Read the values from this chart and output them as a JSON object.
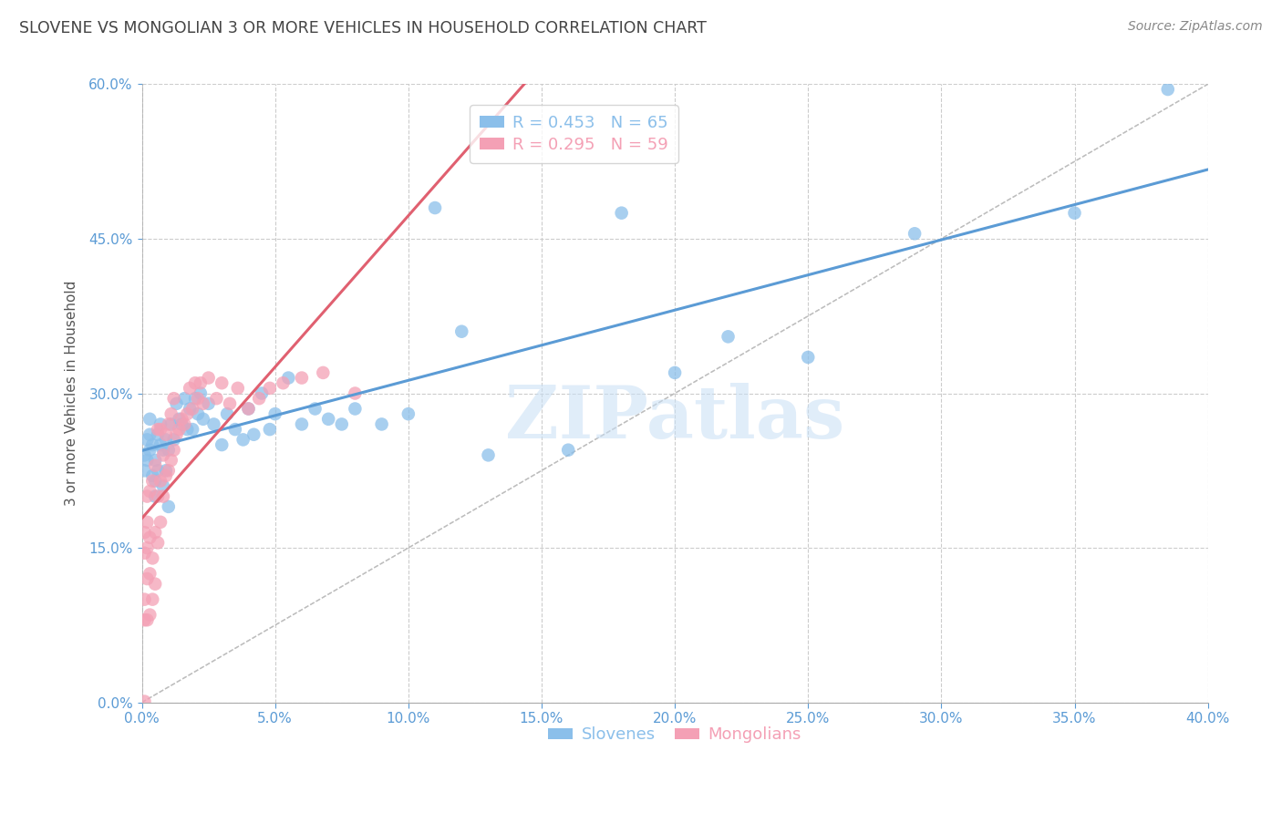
{
  "title": "SLOVENE VS MONGOLIAN 3 OR MORE VEHICLES IN HOUSEHOLD CORRELATION CHART",
  "source": "Source: ZipAtlas.com",
  "ylabel": "3 or more Vehicles in Household",
  "watermark": "ZIPatlas",
  "xmin": 0.0,
  "xmax": 0.4,
  "ymin": 0.0,
  "ymax": 0.6,
  "xticks": [
    0.0,
    0.05,
    0.1,
    0.15,
    0.2,
    0.25,
    0.3,
    0.35,
    0.4
  ],
  "yticks": [
    0.0,
    0.15,
    0.3,
    0.45,
    0.6
  ],
  "legend_entries": [
    {
      "label": "Slovenes",
      "R": 0.453,
      "N": 65,
      "color": "#8bbfea"
    },
    {
      "label": "Mongolians",
      "R": 0.295,
      "N": 59,
      "color": "#f4a0b5"
    }
  ],
  "slovene_x": [
    0.001,
    0.001,
    0.002,
    0.002,
    0.003,
    0.003,
    0.003,
    0.004,
    0.004,
    0.005,
    0.005,
    0.005,
    0.006,
    0.006,
    0.007,
    0.007,
    0.008,
    0.008,
    0.009,
    0.009,
    0.01,
    0.01,
    0.011,
    0.012,
    0.013,
    0.014,
    0.015,
    0.016,
    0.017,
    0.018,
    0.019,
    0.02,
    0.021,
    0.022,
    0.023,
    0.025,
    0.027,
    0.03,
    0.032,
    0.035,
    0.038,
    0.04,
    0.042,
    0.045,
    0.048,
    0.05,
    0.055,
    0.06,
    0.065,
    0.07,
    0.075,
    0.08,
    0.09,
    0.1,
    0.11,
    0.12,
    0.13,
    0.16,
    0.18,
    0.2,
    0.22,
    0.25,
    0.29,
    0.35,
    0.385
  ],
  "slovene_y": [
    0.225,
    0.24,
    0.235,
    0.255,
    0.245,
    0.26,
    0.275,
    0.22,
    0.25,
    0.2,
    0.215,
    0.235,
    0.225,
    0.26,
    0.25,
    0.27,
    0.21,
    0.245,
    0.225,
    0.255,
    0.19,
    0.245,
    0.27,
    0.255,
    0.29,
    0.275,
    0.27,
    0.295,
    0.265,
    0.285,
    0.265,
    0.295,
    0.28,
    0.3,
    0.275,
    0.29,
    0.27,
    0.25,
    0.28,
    0.265,
    0.255,
    0.285,
    0.26,
    0.3,
    0.265,
    0.28,
    0.315,
    0.27,
    0.285,
    0.275,
    0.27,
    0.285,
    0.27,
    0.28,
    0.48,
    0.36,
    0.24,
    0.245,
    0.475,
    0.32,
    0.355,
    0.335,
    0.455,
    0.475,
    0.595
  ],
  "mongolian_x": [
    0.001,
    0.001,
    0.001,
    0.001,
    0.001,
    0.002,
    0.002,
    0.002,
    0.002,
    0.002,
    0.003,
    0.003,
    0.003,
    0.003,
    0.004,
    0.004,
    0.004,
    0.005,
    0.005,
    0.005,
    0.006,
    0.006,
    0.006,
    0.007,
    0.007,
    0.007,
    0.008,
    0.008,
    0.009,
    0.009,
    0.01,
    0.01,
    0.011,
    0.011,
    0.012,
    0.012,
    0.013,
    0.014,
    0.015,
    0.016,
    0.017,
    0.018,
    0.019,
    0.02,
    0.021,
    0.022,
    0.023,
    0.025,
    0.028,
    0.03,
    0.033,
    0.036,
    0.04,
    0.044,
    0.048,
    0.053,
    0.06,
    0.068,
    0.08
  ],
  "mongolian_y": [
    0.001,
    0.08,
    0.1,
    0.145,
    0.165,
    0.08,
    0.12,
    0.15,
    0.175,
    0.2,
    0.085,
    0.125,
    0.16,
    0.205,
    0.1,
    0.14,
    0.215,
    0.115,
    0.165,
    0.23,
    0.155,
    0.2,
    0.265,
    0.175,
    0.215,
    0.265,
    0.2,
    0.24,
    0.22,
    0.26,
    0.225,
    0.27,
    0.235,
    0.28,
    0.245,
    0.295,
    0.26,
    0.265,
    0.275,
    0.27,
    0.28,
    0.305,
    0.285,
    0.31,
    0.295,
    0.31,
    0.29,
    0.315,
    0.295,
    0.31,
    0.29,
    0.305,
    0.285,
    0.295,
    0.305,
    0.31,
    0.315,
    0.32,
    0.3
  ],
  "slovene_color": "#8bbfea",
  "mongolian_color": "#f4a0b5",
  "trend_color_slovene": "#5b9bd5",
  "trend_color_mongolian": "#e06070",
  "refline_color": "#bbbbbb",
  "background_color": "#ffffff",
  "grid_color": "#cccccc",
  "title_color": "#444444",
  "source_color": "#888888",
  "tick_color": "#5b9bd5",
  "ylabel_color": "#555555",
  "watermark_color": "#c8dff5",
  "legend_border_color": "#cccccc"
}
